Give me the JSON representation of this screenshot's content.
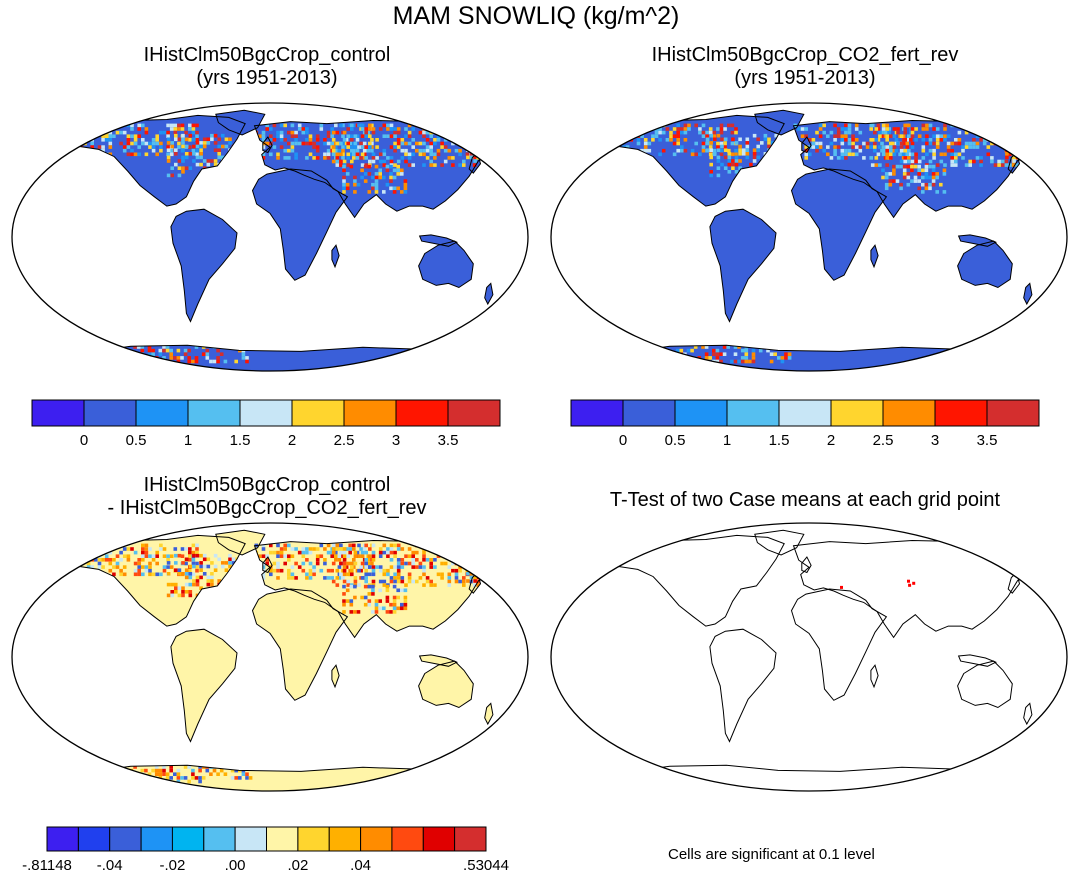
{
  "figure_title": "MAM SNOWLIQ (kg/m^2)",
  "panels": {
    "top_left": {
      "title_line1": "IHistClm50BgcCrop_control",
      "title_line2": "(yrs 1951-2013)"
    },
    "top_right": {
      "title_line1": "IHistClm50BgcCrop_CO2_fert_rev",
      "title_line2": "(yrs 1951-2013)"
    },
    "bottom_left": {
      "title_line1": "IHistClm50BgcCrop_control",
      "title_line2": "- IHistClm50BgcCrop_CO2_fert_rev"
    },
    "bottom_right": {
      "title_line1": "T-Test of two Case means at each grid point"
    }
  },
  "footnote": "Cells are significant at 0.1 level",
  "colors": {
    "land_base": "#3a5fd9",
    "diff_base": "#fff5a8",
    "signif": "#ff0000",
    "outline": "#000000"
  },
  "chart_data": [
    {
      "type": "heatmap",
      "title": "IHistClm50BgcCrop_control (yrs 1951-2013)",
      "projection": "robinson",
      "colorbar": {
        "labels": [
          "0",
          "0.5",
          "1",
          "1.5",
          "2",
          "2.5",
          "3",
          "3.5"
        ],
        "levels": [
          0,
          0.5,
          1,
          1.5,
          2,
          2.5,
          3,
          3.5
        ],
        "colors": [
          "#3d1ff0",
          "#3a5fd9",
          "#1e93f5",
          "#55bff0",
          "#c8e6f6",
          "#ffd52e",
          "#ff8c00",
          "#ff1500",
          "#d42e2e"
        ]
      }
    },
    {
      "type": "heatmap",
      "title": "IHistClm50BgcCrop_CO2_fert_rev (yrs 1951-2013)",
      "projection": "robinson",
      "colorbar": {
        "labels": [
          "0",
          "0.5",
          "1",
          "1.5",
          "2",
          "2.5",
          "3",
          "3.5"
        ],
        "levels": [
          0,
          0.5,
          1,
          1.5,
          2,
          2.5,
          3,
          3.5
        ],
        "colors": [
          "#3d1ff0",
          "#3a5fd9",
          "#1e93f5",
          "#55bff0",
          "#c8e6f6",
          "#ffd52e",
          "#ff8c00",
          "#ff1500",
          "#d42e2e"
        ]
      }
    },
    {
      "type": "heatmap",
      "title": "IHistClm50BgcCrop_control - IHistClm50BgcCrop_CO2_fert_rev",
      "projection": "robinson",
      "colorbar": {
        "labels": [
          "-.81148",
          "-.04",
          "-.02",
          ".00",
          ".02",
          ".04",
          ".53044"
        ],
        "levels": [
          -0.81148,
          -0.04,
          -0.02,
          0.0,
          0.02,
          0.04,
          0.53044
        ],
        "colors": [
          "#3d1ff0",
          "#2040ee",
          "#3a5fd9",
          "#1e93f5",
          "#00b4f0",
          "#55bff0",
          "#c8e6f6",
          "#fff5a8",
          "#ffd52e",
          "#ffb000",
          "#ff8c00",
          "#ff4a10",
          "#e00000",
          "#d42e2e"
        ]
      }
    },
    {
      "type": "heatmap",
      "title": "T-Test of two Case means at each grid point",
      "projection": "robinson",
      "note": "Cells are significant at 0.1 level"
    }
  ]
}
